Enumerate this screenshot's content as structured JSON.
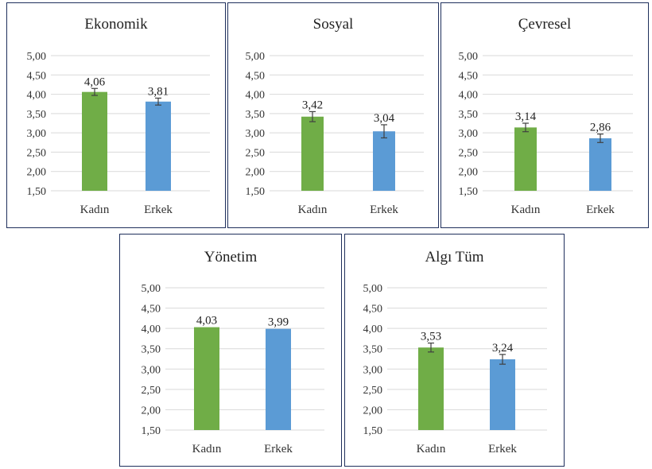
{
  "chart_data": [
    {
      "type": "bar",
      "title": "Ekonomik",
      "categories": [
        "Kadın",
        "Erkek"
      ],
      "values": [
        4.06,
        3.81
      ],
      "value_labels": [
        "4,06",
        "3,81"
      ],
      "error": [
        0.09,
        0.09
      ],
      "ylim": [
        1.5,
        5.0
      ],
      "yticks": [
        "5,00",
        "4,50",
        "4,00",
        "3,50",
        "3,00",
        "2,50",
        "2,00",
        "1,50"
      ],
      "colors": [
        "#70ad47",
        "#5b9bd5"
      ],
      "grid": true
    },
    {
      "type": "bar",
      "title": "Sosyal",
      "categories": [
        "Kadın",
        "Erkek"
      ],
      "values": [
        3.42,
        3.04
      ],
      "value_labels": [
        "3,42",
        "3,04"
      ],
      "error": [
        0.13,
        0.17
      ],
      "ylim": [
        1.5,
        5.0
      ],
      "yticks": [
        "5,00",
        "4,50",
        "4,00",
        "3,50",
        "3,00",
        "2,50",
        "2,00",
        "1,50"
      ],
      "colors": [
        "#70ad47",
        "#5b9bd5"
      ],
      "grid": true
    },
    {
      "type": "bar",
      "title": "Çevresel",
      "categories": [
        "Kadın",
        "Erkek"
      ],
      "values": [
        3.14,
        2.86
      ],
      "value_labels": [
        "3,14",
        "2,86"
      ],
      "error": [
        0.11,
        0.11
      ],
      "ylim": [
        1.5,
        5.0
      ],
      "yticks": [
        "5,00",
        "4,50",
        "4,00",
        "3,50",
        "3,00",
        "2,50",
        "2,00",
        "1,50"
      ],
      "colors": [
        "#70ad47",
        "#5b9bd5"
      ],
      "grid": true
    },
    {
      "type": "bar",
      "title": "Yönetim",
      "categories": [
        "Kadın",
        "Erkek"
      ],
      "values": [
        4.03,
        3.99
      ],
      "value_labels": [
        "4,03",
        "3,99"
      ],
      "error": [
        0,
        0
      ],
      "ylim": [
        1.5,
        5.0
      ],
      "yticks": [
        "5,00",
        "4,50",
        "4,00",
        "3,50",
        "3,00",
        "2,50",
        "2,00",
        "1,50"
      ],
      "colors": [
        "#70ad47",
        "#5b9bd5"
      ],
      "grid": true
    },
    {
      "type": "bar",
      "title": "Algı Tüm",
      "categories": [
        "Kadın",
        "Erkek"
      ],
      "values": [
        3.53,
        3.24
      ],
      "value_labels": [
        "3,53",
        "3,24"
      ],
      "error": [
        0.11,
        0.12
      ],
      "ylim": [
        1.5,
        5.0
      ],
      "yticks": [
        "5,00",
        "4,50",
        "4,00",
        "3,50",
        "3,00",
        "2,50",
        "2,00",
        "1,50"
      ],
      "colors": [
        "#70ad47",
        "#5b9bd5"
      ],
      "grid": true
    }
  ]
}
